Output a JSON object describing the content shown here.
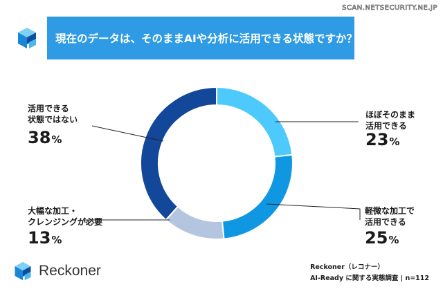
{
  "watermark": "SCAN.NETSECURITY.NE.JP",
  "header": {
    "title": "現在のデータは、そのままAIや分析に活用できる状態ですか？"
  },
  "brand": {
    "name": "Reckoner",
    "logo_icon": "reckoner-logo-icon"
  },
  "source": {
    "line1": "Reckoner（レコナー）",
    "line2": "AI-Ready に関する実態調査 | n=112"
  },
  "colors": {
    "header_bg": "#2e9be4",
    "slice1": "#4ec9fb",
    "slice2": "#0f97e2",
    "slice3": "#b4c6df",
    "slice4": "#12479a"
  },
  "chart_data": {
    "type": "pie",
    "donut": true,
    "title": "現在のデータは、そのままAIや分析に活用できる状態ですか？",
    "unit": "%",
    "categories": [
      "ほぼそのまま 活用できる",
      "軽微な加工で 活用できる",
      "大幅な加工・ クレンジングが必要",
      "活用できる 状態ではない"
    ],
    "values": [
      23,
      25,
      13,
      38
    ],
    "labels": [
      {
        "line1": "ほぼそのまま",
        "line2": "活用できる",
        "value": "23",
        "unit": "%"
      },
      {
        "line1": "軽微な加工で",
        "line2": "活用できる",
        "value": "25",
        "unit": "%"
      },
      {
        "line1": "大幅な加工・",
        "line2": "クレンジングが必要",
        "value": "13",
        "unit": "%"
      },
      {
        "line1": "活用できる",
        "line2": "状態ではない",
        "value": "38",
        "unit": "%"
      }
    ]
  }
}
